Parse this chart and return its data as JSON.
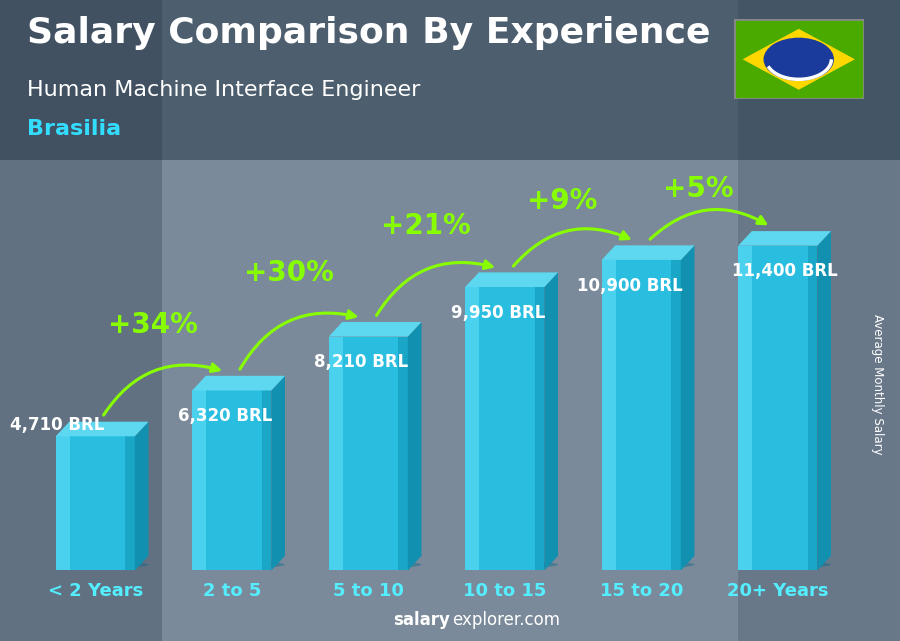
{
  "title": "Salary Comparison By Experience",
  "subtitle": "Human Machine Interface Engineer",
  "city": "Brasilia",
  "ylabel": "Average Monthly Salary",
  "footer_bold": "salary",
  "footer_normal": "explorer.com",
  "categories": [
    "< 2 Years",
    "2 to 5",
    "5 to 10",
    "10 to 15",
    "15 to 20",
    "20+ Years"
  ],
  "values": [
    4710,
    6320,
    8210,
    9950,
    10900,
    11400
  ],
  "value_labels": [
    "4,710 BRL",
    "6,320 BRL",
    "8,210 BRL",
    "9,950 BRL",
    "10,900 BRL",
    "11,400 BRL"
  ],
  "pct_labels": [
    "+34%",
    "+30%",
    "+21%",
    "+9%",
    "+5%"
  ],
  "bar_front": "#29bde0",
  "bar_right": "#1290b0",
  "bar_top": "#5dd8f0",
  "bar_left_highlight": "#60e0f8",
  "bg_color": "#8899aa",
  "title_color": "#ffffff",
  "subtitle_color": "#ffffff",
  "city_color": "#33ddff",
  "pct_color": "#88ff00",
  "value_color": "#ffffff",
  "cat_color": "#55eeff",
  "ylim": [
    0,
    13500
  ],
  "title_fontsize": 26,
  "subtitle_fontsize": 16,
  "city_fontsize": 16,
  "pct_fontsize": 20,
  "value_fontsize": 12,
  "cat_fontsize": 13,
  "flag_green": "#4aaa00",
  "flag_yellow": "#FFD700",
  "flag_blue": "#1a3a9c"
}
